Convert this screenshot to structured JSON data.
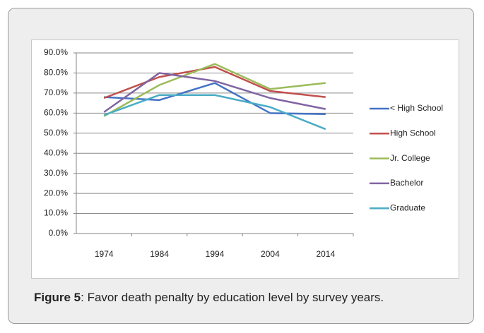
{
  "chart_data": {
    "type": "line",
    "categories": [
      "1974",
      "1984",
      "1994",
      "2004",
      "2014"
    ],
    "series": [
      {
        "name": "< High School",
        "color": "#4472c4",
        "values": [
          68,
          66.5,
          75,
          60,
          59.5
        ]
      },
      {
        "name": "High School",
        "color": "#c0504d",
        "values": [
          67.5,
          78,
          83,
          71,
          68
        ]
      },
      {
        "name": "Jr. College",
        "color": "#9bbb59",
        "values": [
          58.5,
          74,
          84.5,
          72,
          75
        ]
      },
      {
        "name": "Bachelor",
        "color": "#8064a2",
        "values": [
          60.5,
          80,
          76,
          67.5,
          62
        ]
      },
      {
        "name": "Graduate",
        "color": "#4bacc6",
        "values": [
          59,
          69,
          69,
          63,
          52
        ]
      }
    ],
    "ylim": [
      0,
      90
    ],
    "yticks": [
      {
        "value": 0,
        "label": "0.0%"
      },
      {
        "value": 10,
        "label": "10.0%"
      },
      {
        "value": 20,
        "label": "20.0%"
      },
      {
        "value": 30,
        "label": "30.0%"
      },
      {
        "value": 40,
        "label": "40.0%"
      },
      {
        "value": 50,
        "label": "50.0%"
      },
      {
        "value": 60,
        "label": "60.0%"
      },
      {
        "value": 70,
        "label": "70.0%"
      },
      {
        "value": 80,
        "label": "80.0%"
      },
      {
        "value": 90,
        "label": "90.0%"
      }
    ],
    "grid": true,
    "legend": "right"
  },
  "caption": {
    "label": "Figure 5",
    "text": ": Favor death penalty by education level by survey years."
  }
}
